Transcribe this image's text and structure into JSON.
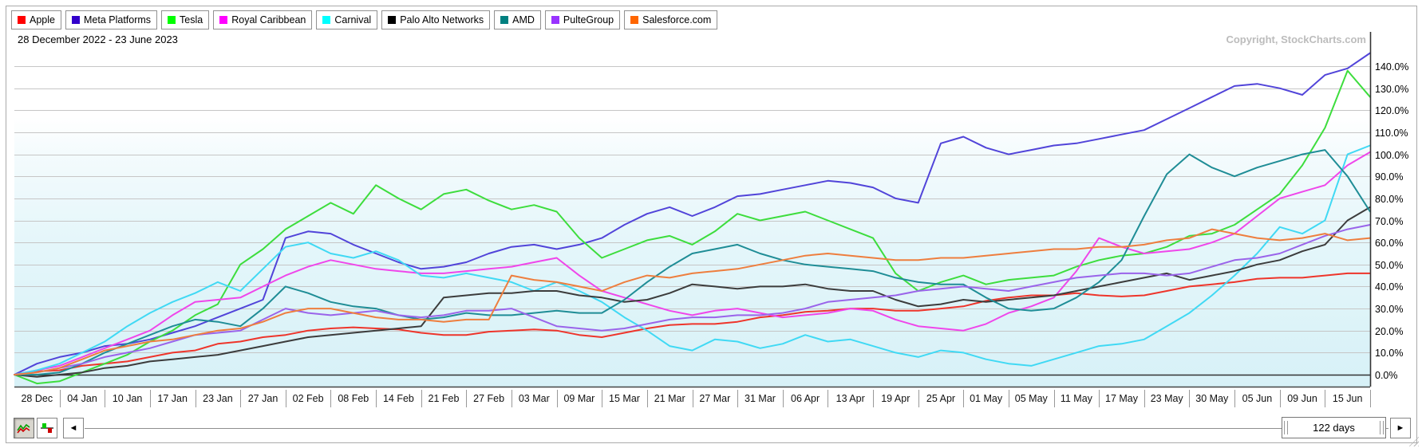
{
  "header": {
    "date_range": "28 December 2022 - 23 June 2023",
    "copyright": "Copyright, StockCharts.com"
  },
  "chart_data": {
    "type": "line",
    "title": "28 December 2022 - 23 June 2023",
    "x_domain": [
      "28 Dec 2022",
      "23 Jun 2023"
    ],
    "x_labels": [
      "28 Dec",
      "04 Jan",
      "10 Jan",
      "17 Jan",
      "23 Jan",
      "27 Jan",
      "02 Feb",
      "08 Feb",
      "14 Feb",
      "21 Feb",
      "27 Feb",
      "03 Mar",
      "09 Mar",
      "15 Mar",
      "21 Mar",
      "27 Mar",
      "31 Mar",
      "06 Apr",
      "13 Apr",
      "19 Apr",
      "25 Apr",
      "01 May",
      "05 May",
      "11 May",
      "17 May",
      "23 May",
      "30 May",
      "05 Jun",
      "09 Jun",
      "15 Jun"
    ],
    "y_axis": {
      "min": 0,
      "max": 140,
      "step": 10,
      "unit": "%",
      "side": "right"
    },
    "grid": true,
    "legend_position": "top",
    "sampling": "61 points, ~2 trading days apart, values are % gain since 28 Dec 2022",
    "series": [
      {
        "name": "Apple",
        "swatch_color": "#ff0000",
        "line_color": "#ee352b",
        "values": [
          0,
          1.5,
          2,
          4,
          5,
          6,
          8,
          10,
          11,
          14,
          15,
          17,
          18,
          20,
          21,
          21.5,
          21,
          20.5,
          19,
          18,
          18,
          19.5,
          20,
          20.5,
          20,
          18,
          17,
          19,
          21,
          22.5,
          23,
          23,
          24,
          26,
          27,
          28.5,
          29,
          30,
          30,
          29,
          29,
          30,
          31,
          33.5,
          35,
          36,
          36,
          37,
          36,
          35.5,
          36,
          38,
          40,
          41,
          42,
          43.5,
          44,
          44,
          45,
          46,
          46
        ]
      },
      {
        "name": "Meta Platforms",
        "swatch_color": "#3300cc",
        "line_color": "#5144d9",
        "values": [
          0,
          5,
          8,
          10,
          13,
          14,
          16,
          19,
          22,
          26,
          30,
          34,
          62,
          65,
          64,
          59,
          55,
          51,
          48,
          49,
          51,
          55,
          58,
          59,
          57,
          59,
          62,
          68,
          73,
          76,
          72,
          76,
          81,
          82,
          84,
          86,
          88,
          87,
          85,
          80,
          78,
          105,
          108,
          103,
          100,
          102,
          104,
          105,
          107,
          109,
          111,
          116,
          121,
          126,
          131,
          132,
          130,
          127,
          136,
          139,
          146
        ]
      },
      {
        "name": "Tesla",
        "swatch_color": "#00ff00",
        "line_color": "#3ddd3d",
        "values": [
          0,
          -4,
          -3,
          1,
          5,
          9,
          15,
          20,
          27,
          32,
          50,
          57,
          66,
          72,
          78,
          73,
          86,
          80,
          75,
          82,
          84,
          79,
          75,
          77,
          74,
          62,
          53,
          57,
          61,
          63,
          59,
          65,
          73,
          70,
          72,
          74,
          70,
          66,
          62,
          46,
          38,
          42,
          45,
          41,
          43,
          44,
          45,
          49,
          52,
          54,
          55,
          58,
          63,
          64,
          68,
          75,
          82,
          95,
          112,
          138,
          126
        ]
      },
      {
        "name": "Royal Caribbean",
        "swatch_color": "#ff00ff",
        "line_color": "#ef46ea",
        "values": [
          0,
          2,
          4,
          8,
          12,
          16,
          20,
          27,
          33,
          34,
          35,
          40,
          45,
          49,
          52,
          50,
          48,
          47,
          46,
          46,
          47,
          48,
          49,
          51,
          53,
          45,
          38,
          35,
          32,
          29,
          27,
          29,
          30,
          28,
          26,
          27,
          28,
          30,
          29,
          25,
          22,
          21,
          20,
          23,
          28,
          31,
          35,
          47,
          62,
          58,
          55,
          56,
          57,
          60,
          64,
          72,
          80,
          83,
          86,
          95,
          101
        ]
      },
      {
        "name": "Carnival",
        "swatch_color": "#00ffff",
        "line_color": "#40d9f4",
        "values": [
          0,
          2,
          5,
          10,
          15,
          22,
          28,
          33,
          37,
          42,
          38,
          48,
          58,
          60,
          55,
          53,
          56,
          52,
          45,
          44,
          46,
          44,
          42,
          38,
          42,
          38,
          33,
          26,
          20,
          13,
          11,
          16,
          15,
          12,
          14,
          18,
          15,
          16,
          13,
          10,
          8,
          11,
          10,
          7,
          5,
          4,
          7,
          10,
          13,
          14,
          16,
          22,
          28,
          36,
          45,
          55,
          67,
          64,
          70,
          100,
          104
        ]
      },
      {
        "name": "Palo Alto Networks",
        "swatch_color": "#000000",
        "line_color": "#3c3c3c",
        "values": [
          0,
          -1,
          0,
          1,
          3,
          4,
          6,
          7,
          8,
          9,
          11,
          13,
          15,
          17,
          18,
          19,
          20,
          21,
          22,
          35,
          36,
          37,
          37,
          38,
          38,
          36,
          35,
          33,
          34,
          37,
          41,
          40,
          39,
          40,
          40,
          41,
          39,
          38,
          38,
          34,
          31,
          32,
          34,
          33,
          34,
          35,
          36,
          38,
          40,
          42,
          44,
          46,
          43,
          45,
          47,
          50,
          52,
          56,
          59,
          70,
          76
        ]
      },
      {
        "name": "AMD",
        "swatch_color": "#008080",
        "line_color": "#1f8d96",
        "values": [
          0,
          0,
          1,
          5,
          10,
          14,
          18,
          22,
          25,
          24,
          22,
          30,
          40,
          37,
          33,
          31,
          30,
          27,
          25,
          26,
          28,
          27,
          27,
          28,
          29,
          28,
          28,
          34,
          42,
          49,
          55,
          57,
          59,
          55,
          52,
          50,
          49,
          48,
          47,
          44,
          42,
          41,
          41,
          35,
          30,
          29,
          30,
          35,
          42,
          52,
          72,
          91,
          100,
          94,
          90,
          94,
          97,
          100,
          102,
          90,
          74
        ]
      },
      {
        "name": "PulteGroup",
        "swatch_color": "#9933ff",
        "line_color": "#9a64ea",
        "values": [
          0,
          1,
          3,
          5,
          8,
          10,
          12,
          15,
          18,
          19,
          20,
          25,
          30,
          28,
          27,
          28,
          29,
          27,
          26,
          27,
          29,
          29,
          30,
          26,
          22,
          21,
          20,
          21,
          23,
          25,
          26,
          26,
          27,
          27,
          28,
          30,
          33,
          34,
          35,
          36,
          38,
          39,
          40,
          39,
          38,
          40,
          42,
          44,
          45,
          46,
          46,
          45,
          46,
          49,
          52,
          53,
          55,
          59,
          63,
          66,
          68
        ]
      },
      {
        "name": "Salesforce.com",
        "swatch_color": "#ff6600",
        "line_color": "#ee7e3e",
        "values": [
          0,
          1,
          3,
          7,
          11,
          13,
          15,
          16,
          18,
          20,
          21,
          24,
          28,
          30,
          30,
          28,
          26,
          25,
          25,
          24,
          25,
          25,
          45,
          43,
          42,
          40,
          38,
          42,
          45,
          44,
          46,
          47,
          48,
          50,
          52,
          54,
          55,
          54,
          53,
          52,
          52,
          53,
          53,
          54,
          55,
          56,
          57,
          57,
          58,
          58,
          59,
          61,
          62,
          66,
          64,
          62,
          61,
          62,
          64,
          61,
          62
        ]
      }
    ]
  },
  "controls": {
    "line_mode_icon": "line-chart-icon",
    "histogram_mode_icon": "histogram-icon",
    "left_arrow": "◄",
    "right_arrow": "►",
    "range_label": "122 days"
  }
}
